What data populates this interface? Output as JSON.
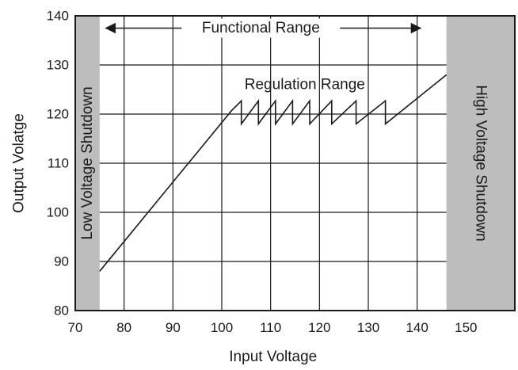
{
  "chart_data": {
    "type": "line",
    "title": "",
    "xlabel": "Input Voltage",
    "ylabel": "Output Volatge",
    "xlim": [
      70,
      160
    ],
    "ylim": [
      80,
      140
    ],
    "x_ticks": [
      70,
      80,
      90,
      100,
      110,
      120,
      130,
      140,
      150
    ],
    "y_ticks": [
      80,
      90,
      100,
      110,
      120,
      130,
      140
    ],
    "grid": true,
    "colors": {
      "line": "#1a1a1a",
      "shutdown_fill": "#bdbdbd",
      "grid": "#1a1a1a"
    },
    "series": [
      {
        "x": [
          75,
          102,
          104,
          104,
          107.5,
          107.5,
          111,
          111,
          114.5,
          114.5,
          118,
          118,
          122.5,
          122.5,
          127.5,
          127.5,
          133.5,
          133.5,
          146
        ],
        "y": [
          88,
          120.7,
          122.7,
          118,
          122.7,
          118,
          122.7,
          118,
          122.7,
          118,
          122.7,
          118,
          122.7,
          118,
          122.7,
          118,
          122.7,
          118,
          128
        ]
      }
    ],
    "regions": [
      {
        "label": "Low Voltage Shutdown",
        "x_start": 70,
        "x_end": 75
      },
      {
        "label": "High Voltage Shutdown",
        "x_start": 146,
        "x_end": 160
      }
    ],
    "annotations": [
      {
        "label": "Functional Range",
        "type": "range-arrow",
        "x_start": 75,
        "x_end": 141,
        "y": 137.5
      },
      {
        "label": "Regulation Range",
        "type": "text",
        "x": 117,
        "y": 126
      }
    ]
  }
}
